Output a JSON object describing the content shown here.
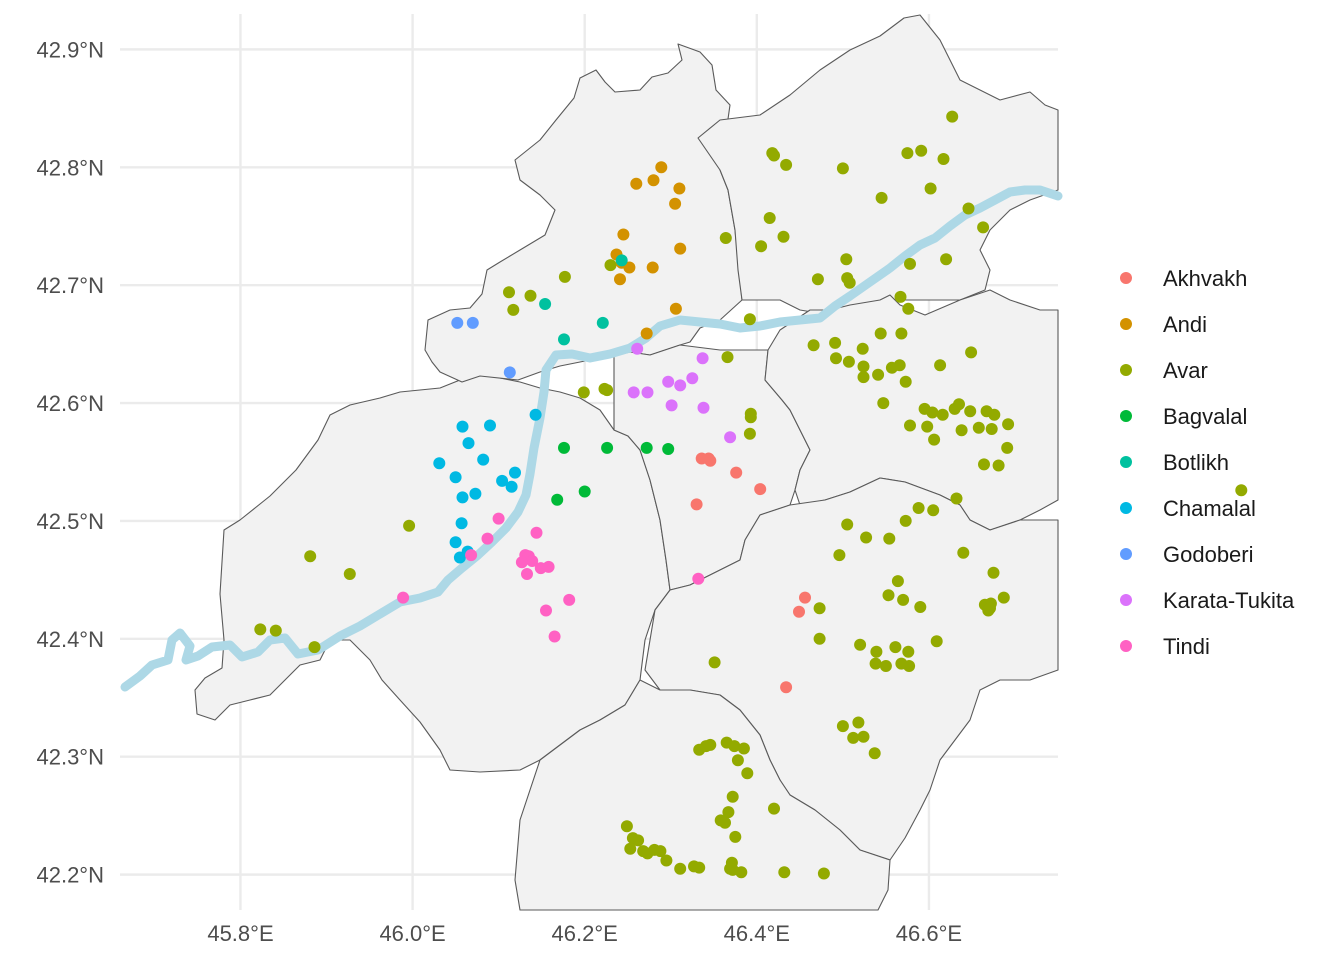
{
  "map": {
    "x_axis": {
      "range": [
        45.66,
        46.75
      ],
      "ticks": [
        45.8,
        46.0,
        46.2,
        46.4,
        46.6
      ],
      "labels": [
        "45.8°E",
        "46.0°E",
        "46.2°E",
        "46.4°E",
        "46.6°E"
      ]
    },
    "y_axis": {
      "range": [
        42.17,
        42.93
      ],
      "ticks": [
        42.2,
        42.3,
        42.4,
        42.5,
        42.6,
        42.7,
        42.8,
        42.9
      ],
      "labels": [
        "42.2°N",
        "42.3°N",
        "42.4°N",
        "42.5°N",
        "42.6°N",
        "42.7°N",
        "42.8°N",
        "42.9°N"
      ]
    },
    "grid": true,
    "legend_position": "right",
    "region_fill": "#f2f2f2",
    "river_color": "#add8e6"
  },
  "legend": [
    {
      "label": "Akhvakh",
      "color": "#F8766D"
    },
    {
      "label": "Andi",
      "color": "#D39200"
    },
    {
      "label": "Avar",
      "color": "#93AA00"
    },
    {
      "label": "Bagvalal",
      "color": "#00BA38"
    },
    {
      "label": "Botlikh",
      "color": "#00C19F"
    },
    {
      "label": "Chamalal",
      "color": "#00B9E3"
    },
    {
      "label": "Godoberi",
      "color": "#619CFF"
    },
    {
      "label": "Karata-Tukita",
      "color": "#DB72FB"
    },
    {
      "label": "Tindi",
      "color": "#FF61C3"
    }
  ],
  "chart_data": {
    "type": "scatter",
    "xlabel": "",
    "ylabel": "",
    "series": [
      {
        "name": "Akhvakh",
        "points": [
          [
            46.336,
            42.553
          ],
          [
            46.346,
            42.551
          ],
          [
            46.344,
            42.553
          ],
          [
            46.376,
            42.541
          ],
          [
            46.404,
            42.527
          ],
          [
            46.33,
            42.514
          ],
          [
            46.456,
            42.435
          ],
          [
            46.449,
            42.423
          ],
          [
            46.434,
            42.359
          ]
        ]
      },
      {
        "name": "Andi",
        "points": [
          [
            46.289,
            42.8
          ],
          [
            46.26,
            42.786
          ],
          [
            46.28,
            42.789
          ],
          [
            46.31,
            42.782
          ],
          [
            46.305,
            42.769
          ],
          [
            46.245,
            42.743
          ],
          [
            46.237,
            42.726
          ],
          [
            46.243,
            42.719
          ],
          [
            46.252,
            42.715
          ],
          [
            46.279,
            42.715
          ],
          [
            46.311,
            42.731
          ],
          [
            46.241,
            42.705
          ],
          [
            46.306,
            42.68
          ],
          [
            46.272,
            42.659
          ]
        ]
      },
      {
        "name": "Avar",
        "points": [
          [
            46.418,
            42.812
          ],
          [
            46.42,
            42.81
          ],
          [
            46.434,
            42.802
          ],
          [
            46.5,
            42.799
          ],
          [
            46.575,
            42.812
          ],
          [
            46.591,
            42.814
          ],
          [
            46.617,
            42.807
          ],
          [
            46.627,
            42.843
          ],
          [
            46.602,
            42.782
          ],
          [
            46.545,
            42.774
          ],
          [
            46.415,
            42.757
          ],
          [
            46.431,
            42.741
          ],
          [
            46.405,
            42.733
          ],
          [
            46.364,
            42.74
          ],
          [
            46.646,
            42.765
          ],
          [
            46.663,
            42.749
          ],
          [
            46.504,
            42.722
          ],
          [
            46.578,
            42.718
          ],
          [
            46.62,
            42.722
          ],
          [
            46.471,
            42.705
          ],
          [
            46.505,
            42.706
          ],
          [
            46.508,
            42.702
          ],
          [
            46.567,
            42.69
          ],
          [
            46.576,
            42.68
          ],
          [
            46.392,
            42.671
          ],
          [
            46.366,
            42.639
          ],
          [
            46.23,
            42.717
          ],
          [
            46.177,
            42.707
          ],
          [
            46.112,
            42.694
          ],
          [
            46.137,
            42.691
          ],
          [
            46.117,
            42.679
          ],
          [
            46.199,
            42.609
          ],
          [
            46.223,
            42.612
          ],
          [
            46.226,
            42.611
          ],
          [
            46.466,
            42.649
          ],
          [
            46.491,
            42.651
          ],
          [
            46.507,
            42.635
          ],
          [
            46.492,
            42.638
          ],
          [
            46.523,
            42.646
          ],
          [
            46.544,
            42.659
          ],
          [
            46.568,
            42.659
          ],
          [
            46.524,
            42.631
          ],
          [
            46.541,
            42.624
          ],
          [
            46.557,
            42.63
          ],
          [
            46.566,
            42.632
          ],
          [
            46.524,
            42.622
          ],
          [
            46.573,
            42.618
          ],
          [
            46.613,
            42.632
          ],
          [
            46.649,
            42.643
          ],
          [
            46.547,
            42.6
          ],
          [
            46.595,
            42.595
          ],
          [
            46.604,
            42.592
          ],
          [
            46.616,
            42.59
          ],
          [
            46.63,
            42.595
          ],
          [
            46.635,
            42.599
          ],
          [
            46.648,
            42.593
          ],
          [
            46.667,
            42.593
          ],
          [
            46.676,
            42.59
          ],
          [
            46.578,
            42.581
          ],
          [
            46.598,
            42.58
          ],
          [
            46.638,
            42.577
          ],
          [
            46.658,
            42.579
          ],
          [
            46.673,
            42.578
          ],
          [
            46.692,
            42.582
          ],
          [
            46.606,
            42.569
          ],
          [
            46.691,
            42.562
          ],
          [
            46.664,
            42.548
          ],
          [
            46.681,
            42.547
          ],
          [
            46.393,
            42.591
          ],
          [
            46.393,
            42.588
          ],
          [
            46.392,
            42.574
          ],
          [
            46.963,
            42.526
          ],
          [
            45.996,
            42.496
          ],
          [
            45.881,
            42.47
          ],
          [
            45.927,
            42.455
          ],
          [
            45.823,
            42.408
          ],
          [
            45.841,
            42.407
          ],
          [
            45.886,
            42.393
          ],
          [
            46.505,
            42.497
          ],
          [
            46.527,
            42.486
          ],
          [
            46.554,
            42.485
          ],
          [
            46.573,
            42.5
          ],
          [
            46.588,
            42.511
          ],
          [
            46.605,
            42.509
          ],
          [
            46.632,
            42.519
          ],
          [
            46.496,
            42.471
          ],
          [
            46.64,
            42.473
          ],
          [
            46.553,
            42.437
          ],
          [
            46.564,
            42.449
          ],
          [
            46.57,
            42.433
          ],
          [
            46.59,
            42.427
          ],
          [
            46.473,
            42.426
          ],
          [
            46.675,
            42.456
          ],
          [
            46.665,
            42.429
          ],
          [
            46.672,
            42.43
          ],
          [
            46.669,
            42.424
          ],
          [
            46.671,
            42.426
          ],
          [
            46.687,
            42.435
          ],
          [
            46.473,
            42.4
          ],
          [
            46.52,
            42.395
          ],
          [
            46.539,
            42.389
          ],
          [
            46.561,
            42.393
          ],
          [
            46.576,
            42.389
          ],
          [
            46.609,
            42.398
          ],
          [
            46.538,
            42.379
          ],
          [
            46.55,
            42.377
          ],
          [
            46.568,
            42.379
          ],
          [
            46.577,
            42.377
          ],
          [
            46.351,
            42.38
          ],
          [
            46.5,
            42.326
          ],
          [
            46.518,
            42.329
          ],
          [
            46.512,
            42.316
          ],
          [
            46.524,
            42.317
          ],
          [
            46.537,
            42.303
          ],
          [
            46.333,
            42.306
          ],
          [
            46.341,
            42.309
          ],
          [
            46.346,
            42.31
          ],
          [
            46.365,
            42.312
          ],
          [
            46.374,
            42.309
          ],
          [
            46.385,
            42.307
          ],
          [
            46.378,
            42.297
          ],
          [
            46.389,
            42.286
          ],
          [
            46.372,
            42.266
          ],
          [
            46.367,
            42.253
          ],
          [
            46.358,
            42.246
          ],
          [
            46.363,
            42.244
          ],
          [
            46.42,
            42.256
          ],
          [
            46.249,
            42.241
          ],
          [
            46.256,
            42.231
          ],
          [
            46.262,
            42.229
          ],
          [
            46.253,
            42.222
          ],
          [
            46.268,
            42.22
          ],
          [
            46.273,
            42.218
          ],
          [
            46.281,
            42.221
          ],
          [
            46.288,
            42.22
          ],
          [
            46.295,
            42.212
          ],
          [
            46.311,
            42.205
          ],
          [
            46.327,
            42.207
          ],
          [
            46.333,
            42.206
          ],
          [
            46.375,
            42.232
          ],
          [
            46.371,
            42.21
          ],
          [
            46.369,
            42.205
          ],
          [
            46.372,
            42.204
          ],
          [
            46.382,
            42.202
          ],
          [
            46.432,
            42.202
          ],
          [
            46.478,
            42.201
          ]
        ]
      },
      {
        "name": "Bagvalal",
        "points": [
          [
            46.176,
            42.562
          ],
          [
            46.226,
            42.562
          ],
          [
            46.272,
            42.562
          ],
          [
            46.297,
            42.561
          ],
          [
            46.168,
            42.518
          ],
          [
            46.2,
            42.525
          ]
        ]
      },
      {
        "name": "Botlikh",
        "points": [
          [
            46.154,
            42.684
          ],
          [
            46.221,
            42.668
          ],
          [
            46.176,
            42.654
          ],
          [
            46.243,
            42.721
          ]
        ]
      },
      {
        "name": "Chamalal",
        "points": [
          [
            46.058,
            42.58
          ],
          [
            46.09,
            42.581
          ],
          [
            46.065,
            42.566
          ],
          [
            46.031,
            42.549
          ],
          [
            46.05,
            42.537
          ],
          [
            46.082,
            42.552
          ],
          [
            46.104,
            42.534
          ],
          [
            46.119,
            42.541
          ],
          [
            46.115,
            42.529
          ],
          [
            46.073,
            42.523
          ],
          [
            46.058,
            42.52
          ],
          [
            46.057,
            42.498
          ],
          [
            46.05,
            42.482
          ],
          [
            46.064,
            42.474
          ],
          [
            46.055,
            42.469
          ],
          [
            46.143,
            42.59
          ]
        ]
      },
      {
        "name": "Godoberi",
        "points": [
          [
            46.052,
            42.668
          ],
          [
            46.07,
            42.668
          ],
          [
            46.113,
            42.626
          ]
        ]
      },
      {
        "name": "Karata-Tukita",
        "points": [
          [
            46.261,
            42.646
          ],
          [
            46.337,
            42.638
          ],
          [
            46.297,
            42.618
          ],
          [
            46.311,
            42.615
          ],
          [
            46.325,
            42.621
          ],
          [
            46.257,
            42.609
          ],
          [
            46.273,
            42.609
          ],
          [
            46.301,
            42.598
          ],
          [
            46.338,
            42.596
          ],
          [
            46.369,
            42.571
          ]
        ]
      },
      {
        "name": "Tindi",
        "points": [
          [
            46.1,
            42.502
          ],
          [
            46.144,
            42.49
          ],
          [
            46.087,
            42.485
          ],
          [
            46.068,
            42.471
          ],
          [
            46.131,
            42.471
          ],
          [
            46.135,
            42.47
          ],
          [
            46.139,
            42.466
          ],
          [
            46.127,
            42.465
          ],
          [
            46.149,
            42.46
          ],
          [
            46.158,
            42.461
          ],
          [
            46.133,
            42.455
          ],
          [
            45.989,
            42.435
          ],
          [
            46.182,
            42.433
          ],
          [
            46.155,
            42.424
          ],
          [
            46.165,
            42.402
          ],
          [
            46.332,
            42.451
          ]
        ]
      }
    ]
  }
}
